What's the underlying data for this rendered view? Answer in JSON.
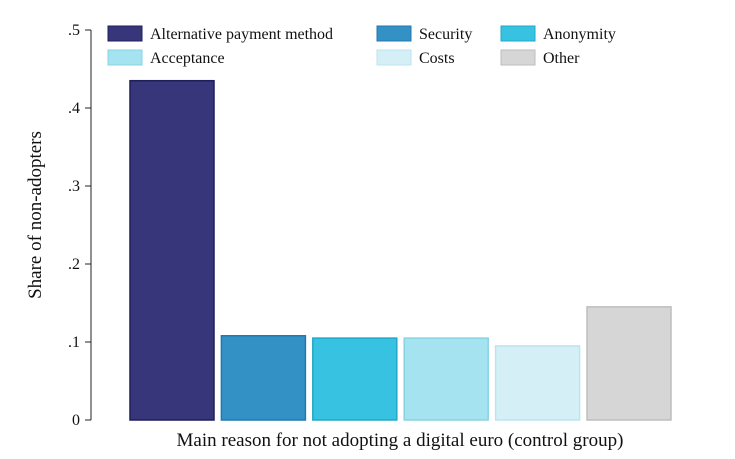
{
  "chart_data": {
    "type": "bar",
    "title": "",
    "xlabel": "Main reason for not adopting a digital euro (control group)",
    "ylabel": "Share of non-adopters",
    "ylim": [
      0,
      0.5
    ],
    "yticks": [
      {
        "value": 0,
        "label": "0"
      },
      {
        "value": 0.1,
        "label": ".1"
      },
      {
        "value": 0.2,
        "label": ".2"
      },
      {
        "value": 0.3,
        "label": ".3"
      },
      {
        "value": 0.4,
        "label": ".4"
      },
      {
        "value": 0.5,
        "label": ".5"
      }
    ],
    "grid": false,
    "legend_position": "top",
    "series": [
      {
        "name": "Alternative payment method",
        "value": 0.435,
        "color": "#38367a",
        "stroke": "#1f1d5a"
      },
      {
        "name": "Security",
        "value": 0.108,
        "color": "#3491c6",
        "stroke": "#2278ad"
      },
      {
        "name": "Anonymity",
        "value": 0.105,
        "color": "#36c2e0",
        "stroke": "#22a8c8"
      },
      {
        "name": "Acceptance",
        "value": 0.105,
        "color": "#a4e3ef",
        "stroke": "#88d3e4"
      },
      {
        "name": "Costs",
        "value": 0.095,
        "color": "#d4f0f6",
        "stroke": "#bde4ee"
      },
      {
        "name": "Other",
        "value": 0.145,
        "color": "#d6d6d6",
        "stroke": "#bdbdbd"
      }
    ]
  }
}
